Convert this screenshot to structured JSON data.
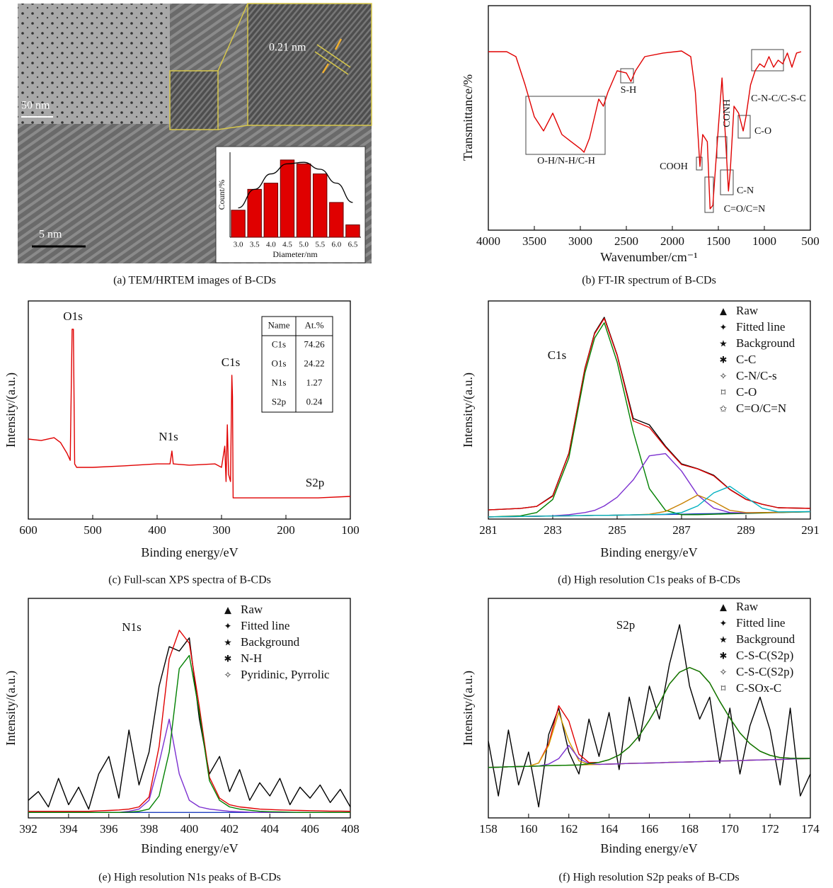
{
  "tem_image": {
    "labels": [
      "50 nm",
      "5 nm",
      "0.21 nm"
    ],
    "caption": "(a) TEM/HRTEM images of B-CDs"
  },
  "chart_data": [
    {
      "type": "bar",
      "x_label": "Diameter/nm",
      "y_label": "Count/%",
      "categories": [
        "3.0",
        "3.5",
        "4.0",
        "4.5",
        "5.0",
        "5.5",
        "6.0",
        "6.5"
      ],
      "values": [
        35,
        62,
        70,
        100,
        95,
        82,
        45,
        16
      ],
      "curve": [
        38,
        62,
        82,
        95,
        97,
        88,
        70,
        45
      ],
      "color": "#e00000",
      "curve_color": "#000000",
      "ylim": [
        0,
        110
      ]
    },
    {
      "type": "line",
      "caption": "(b) FT-IR spectrum of B-CDs",
      "x_label": "Wavenumber/cm⁻¹",
      "y_label": "Transmittance/%",
      "x": [
        4000,
        3800,
        3700,
        3600,
        3500,
        3400,
        3300,
        3200,
        3100,
        3000,
        2960,
        2900,
        2800,
        2750,
        2700,
        2600,
        2500,
        2450,
        2400,
        2300,
        2100,
        1900,
        1800,
        1750,
        1700,
        1670,
        1620,
        1590,
        1560,
        1500,
        1460,
        1420,
        1390,
        1370,
        1330,
        1280,
        1230,
        1200,
        1150,
        1100,
        1050,
        1000,
        950,
        900,
        850,
        800,
        750,
        700,
        650,
        600
      ],
      "series": [
        {
          "color": "#e00000",
          "values": [
            79.5,
            79.5,
            77.3,
            64.7,
            50.5,
            44.2,
            52.1,
            42.6,
            39.4,
            36.3,
            34.7,
            41.0,
            58.4,
            55.2,
            61.5,
            71.0,
            70.0,
            66.2,
            71.0,
            77.3,
            78.9,
            79.8,
            77.3,
            61.5,
            28.4,
            42.6,
            39.4,
            9.5,
            11.0,
            45.7,
            67.8,
            39.4,
            17.4,
            26.8,
            55.2,
            52.1,
            44.2,
            50.5,
            64.7,
            71.0,
            74.1,
            72.6,
            77.3,
            72.6,
            75.7,
            74.1,
            78.9,
            72.6,
            78.9,
            79.5
          ]
        }
      ],
      "xlim": [
        4000,
        500
      ],
      "xticks": [
        4000,
        3500,
        3000,
        2500,
        2000,
        1500,
        1000,
        500
      ],
      "ylim": [
        0,
        100
      ],
      "annotations": [
        "O-H/N-H/C-H",
        "S-H",
        "COOH",
        "CONH",
        "C-O",
        "C-N",
        "C=O/C=N",
        "C-N-C/C-S-C"
      ]
    },
    {
      "type": "line",
      "caption": "(c) Full-scan XPS spectra of B-CDs",
      "x_label": "Binding energy/eV",
      "y_label": "Intensity/(a.u.)",
      "x": [
        600,
        580,
        560,
        550,
        540,
        535,
        532,
        530,
        528,
        525,
        500,
        450,
        400,
        380,
        377,
        375,
        350,
        310,
        300,
        295,
        293,
        291,
        289,
        286,
        284,
        283,
        282,
        250,
        200,
        150,
        100
      ],
      "series": [
        {
          "color": "#e00000",
          "values": [
            36.7,
            36.0,
            37.3,
            35.1,
            30.2,
            26.9,
            87.0,
            87.0,
            25.3,
            23.7,
            23.7,
            24.4,
            25.3,
            25.3,
            31.2,
            25.3,
            24.7,
            25.3,
            23.7,
            33.4,
            17.2,
            43.2,
            20.5,
            17.2,
            65.9,
            56.2,
            9.7,
            9.7,
            9.7,
            9.7,
            10.4
          ]
        }
      ],
      "xlim": [
        600,
        100
      ],
      "xticks": [
        600,
        500,
        400,
        300,
        200,
        100
      ],
      "ylim": [
        0,
        100
      ],
      "annotations": [
        "O1s",
        "N1s",
        "C1s",
        "S2p"
      ],
      "table": {
        "header": [
          "Name",
          "At.%"
        ],
        "rows": [
          [
            "C1s",
            74.26
          ],
          [
            "O1s",
            24.22
          ],
          [
            "N1s",
            1.27
          ],
          [
            "S2p",
            0.24
          ]
        ]
      }
    },
    {
      "type": "line",
      "caption": "(d) High resolution C1s peaks of B-CDs",
      "x_label": "Binding energy/eV",
      "y_label": "Intensity/(a.u.)",
      "x": [
        281,
        282,
        282.5,
        283,
        283.5,
        284,
        284.3,
        284.6,
        285,
        285.5,
        286,
        286.5,
        287,
        287.5,
        288,
        288.5,
        289,
        289.5,
        290,
        291
      ],
      "series": [
        {
          "name": "Raw",
          "color": "#000000",
          "values": [
            4.2,
            4.9,
            5.8,
            10.7,
            30.2,
            69.2,
            85.4,
            92.5,
            75.3,
            46.1,
            43.2,
            33.4,
            25.3,
            23.1,
            20.1,
            13.6,
            9.1,
            6.8,
            5.2,
            4.9
          ]
        },
        {
          "name": "Fitted line",
          "color": "#e00000",
          "values": [
            4.2,
            4.9,
            5.8,
            10.5,
            30,
            69,
            85,
            92,
            75,
            45,
            42,
            33,
            25,
            23,
            19.8,
            13.5,
            9,
            6.8,
            5.2,
            4.9
          ]
        },
        {
          "name": "Background",
          "color": "#1f3fbf",
          "values": [
            1.0,
            1.2,
            1.3,
            1.4,
            1.5,
            1.6,
            1.7,
            1.7,
            1.8,
            1.9,
            2.0,
            2.1,
            2.2,
            2.4,
            2.5,
            2.7,
            2.8,
            3.0,
            3.1,
            3.4
          ]
        },
        {
          "name": "C-C",
          "color": "#008000",
          "values": [
            1.0,
            1.5,
            3,
            9,
            28,
            67,
            83,
            90,
            72,
            40,
            14,
            4,
            2,
            2,
            2.2,
            2.4,
            2.6,
            2.8,
            3,
            3.3
          ]
        },
        {
          "name": "C-N/C-s",
          "color": "#7b2fd0",
          "values": [
            1,
            1.2,
            1.3,
            1.5,
            2,
            3,
            4,
            6,
            10,
            18,
            29,
            30,
            22,
            11,
            5,
            3,
            2.8,
            3,
            3.1,
            3.4
          ]
        },
        {
          "name": "C-O",
          "color": "#c88000",
          "values": [
            1,
            1.2,
            1.3,
            1.4,
            1.5,
            1.6,
            1.7,
            1.7,
            1.8,
            1.9,
            2.2,
            3.5,
            7,
            11,
            8,
            4,
            3,
            3,
            3.1,
            3.4
          ]
        },
        {
          "name": "C=O/C=N",
          "color": "#00b0c0",
          "values": [
            1,
            1.2,
            1.3,
            1.4,
            1.5,
            1.6,
            1.7,
            1.7,
            1.8,
            1.9,
            2,
            2.2,
            3,
            6,
            12,
            15,
            10,
            5,
            3.3,
            3.4
          ]
        }
      ],
      "xlim": [
        281,
        291
      ],
      "xticks": [
        281,
        283,
        285,
        287,
        289,
        291
      ],
      "ylim": [
        0,
        100
      ],
      "annotations": [
        "C1s"
      ]
    },
    {
      "type": "line",
      "caption": "(e) High resolution N1s peaks of B-CDs",
      "x_label": "Binding energy/eV",
      "y_label": "Intensity/(a.u.)",
      "x": [
        392,
        392.5,
        393,
        393.5,
        394,
        394.5,
        395,
        395.5,
        396,
        396.5,
        397,
        397.5,
        398,
        398.5,
        399,
        399.5,
        400,
        400.5,
        401,
        401.5,
        402,
        402.5,
        403,
        403.5,
        404,
        404.5,
        405,
        405.5,
        406,
        406.5,
        407,
        407.5,
        408
      ],
      "series": [
        {
          "name": "Raw",
          "color": "#000000",
          "values": [
            8,
            12,
            5,
            18,
            6,
            14,
            4,
            20,
            28,
            9,
            40,
            15,
            30,
            60,
            78,
            76,
            82,
            45,
            20,
            28,
            12,
            22,
            8,
            16,
            10,
            18,
            6,
            14,
            9,
            15,
            7,
            13,
            5
          ]
        },
        {
          "name": "Fitted line",
          "color": "#e00000",
          "values": [
            3,
            3,
            3,
            3,
            3,
            3,
            3,
            3.2,
            3.4,
            3.6,
            4,
            5,
            9.5,
            32.5,
            72.5,
            85.5,
            79.5,
            50.5,
            18.5,
            9,
            6,
            5,
            4.5,
            4,
            3.8,
            3.6,
            3.5,
            3.4,
            3.3,
            3.2,
            3.1,
            3.1,
            3
          ]
        },
        {
          "name": "Background",
          "color": "#1f3fbf",
          "values": [
            2.5,
            2.5,
            2.5,
            2.5,
            2.5,
            2.5,
            2.5,
            2.5,
            2.5,
            2.5,
            2.5,
            2.5,
            2.5,
            2.5,
            2.5,
            2.5,
            2.5,
            2.5,
            2.5,
            2.5,
            2.5,
            2.5,
            2.5,
            2.5,
            2.5,
            2.5,
            2.5,
            2.5,
            2.5,
            2.5,
            2.5,
            2.5,
            2.5
          ]
        },
        {
          "name": "N-H",
          "color": "#7b2fd0",
          "values": [
            2.5,
            2.5,
            2.5,
            2.5,
            2.5,
            2.5,
            2.5,
            2.5,
            2.5,
            2.5,
            3,
            4,
            8,
            25,
            45,
            20,
            8,
            5,
            4,
            3.5,
            3,
            2.8,
            2.6,
            2.5,
            2.5,
            2.5,
            2.5,
            2.5,
            2.5,
            2.5,
            2.5,
            2.5,
            2.5
          ]
        },
        {
          "name": "Pyridinic, Pyrrolic",
          "color": "#008000",
          "values": [
            2.5,
            2.5,
            2.5,
            2.5,
            2.5,
            2.5,
            2.5,
            2.5,
            2.5,
            2.5,
            2.6,
            3,
            4,
            10,
            30,
            68,
            74,
            48,
            17,
            8,
            5,
            4,
            3.5,
            3,
            2.8,
            2.7,
            2.6,
            2.5,
            2.5,
            2.5,
            2.5,
            2.5,
            2.5
          ]
        }
      ],
      "xlim": [
        392,
        408
      ],
      "xticks": [
        392,
        394,
        396,
        398,
        400,
        402,
        404,
        406,
        408
      ],
      "ylim": [
        0,
        100
      ],
      "annotations": [
        "N1s"
      ]
    },
    {
      "type": "line",
      "caption": "(f) High resolution S2p peaks of B-CDs",
      "x_label": "Binding energy/eV",
      "y_label": "Intensity/(a.u.)",
      "x": [
        158,
        158.5,
        159,
        159.5,
        160,
        160.5,
        161,
        161.5,
        162,
        162.5,
        163,
        163.5,
        164,
        164.5,
        165,
        165.5,
        166,
        166.5,
        167,
        167.5,
        168,
        168.5,
        169,
        169.5,
        170,
        170.5,
        171,
        171.5,
        172,
        172.5,
        173,
        173.5,
        174
      ],
      "series": [
        {
          "name": "Raw",
          "color": "#000000",
          "values": [
            35,
            10,
            40,
            15,
            30,
            5,
            38,
            50,
            30,
            20,
            45,
            28,
            48,
            22,
            55,
            35,
            60,
            45,
            70,
            88,
            60,
            45,
            55,
            25,
            50,
            20,
            42,
            55,
            40,
            15,
            50,
            10,
            20
          ]
        },
        {
          "name": "Fitted line",
          "color": "#e00000",
          "values": [
            23,
            23.1,
            23.3,
            23.4,
            23.5,
            25,
            33.8,
            51.1,
            44.1,
            29,
            25.2,
            25.3,
            26.5,
            28.6,
            32.3,
            37.5,
            44.5,
            52.3,
            61,
            66.4,
            68.5,
            66.6,
            61.5,
            53.1,
            45.5,
            38.7,
            33.8,
            30.4,
            28.5,
            27.5,
            27.2,
            27.1,
            27.1
          ]
        },
        {
          "name": "Background",
          "color": "#c06000",
          "values": [
            23,
            23.1,
            23.3,
            23.4,
            23.5,
            23.6,
            23.8,
            23.9,
            24,
            24.1,
            24.3,
            24.4,
            24.5,
            24.6,
            24.8,
            24.9,
            25,
            25.1,
            25.3,
            25.4,
            25.5,
            25.6,
            25.8,
            25.9,
            26,
            26.1,
            26.3,
            26.4,
            26.5,
            26.6,
            26.8,
            26.9,
            27
          ]
        },
        {
          "name": "C-S-C(S2p)",
          "color": "#d4a000",
          "values": [
            23,
            23.1,
            23.3,
            23.4,
            23.5,
            25,
            33,
            48,
            35,
            26,
            24.3,
            24.4,
            24.5,
            24.6,
            24.8,
            24.9,
            25,
            25.1,
            25.3,
            25.4,
            25.5,
            25.6,
            25.8,
            25.9,
            26,
            26.1,
            26.3,
            26.4,
            26.5,
            26.6,
            26.8,
            26.9,
            27
          ]
        },
        {
          "name": "C-S-C(S2p)",
          "color": "#7b2fd0",
          "values": [
            23,
            23.1,
            23.3,
            23.4,
            23.5,
            23.6,
            24.5,
            27,
            33,
            27,
            24.8,
            24.4,
            24.5,
            24.6,
            24.8,
            24.9,
            25,
            25.1,
            25.3,
            25.4,
            25.5,
            25.6,
            25.8,
            25.9,
            26,
            26.1,
            26.3,
            26.4,
            26.5,
            26.6,
            26.8,
            26.9,
            27
          ]
        },
        {
          "name": "C-SOx-C",
          "color": "#008000",
          "values": [
            23,
            23.1,
            23.3,
            23.4,
            23.5,
            23.6,
            23.8,
            23.9,
            24,
            24.1,
            24.7,
            25.3,
            26.5,
            28.6,
            32.3,
            37.5,
            44.5,
            52.3,
            61,
            66.4,
            68.5,
            66.6,
            61.5,
            53.1,
            45.5,
            38.7,
            33.8,
            30.4,
            28.5,
            27.5,
            27.2,
            27.1,
            27.1
          ]
        }
      ],
      "xlim": [
        158,
        174
      ],
      "xticks": [
        158,
        160,
        162,
        164,
        166,
        168,
        170,
        172,
        174
      ],
      "ylim": [
        0,
        100
      ],
      "annotations": [
        "S2p"
      ]
    }
  ]
}
